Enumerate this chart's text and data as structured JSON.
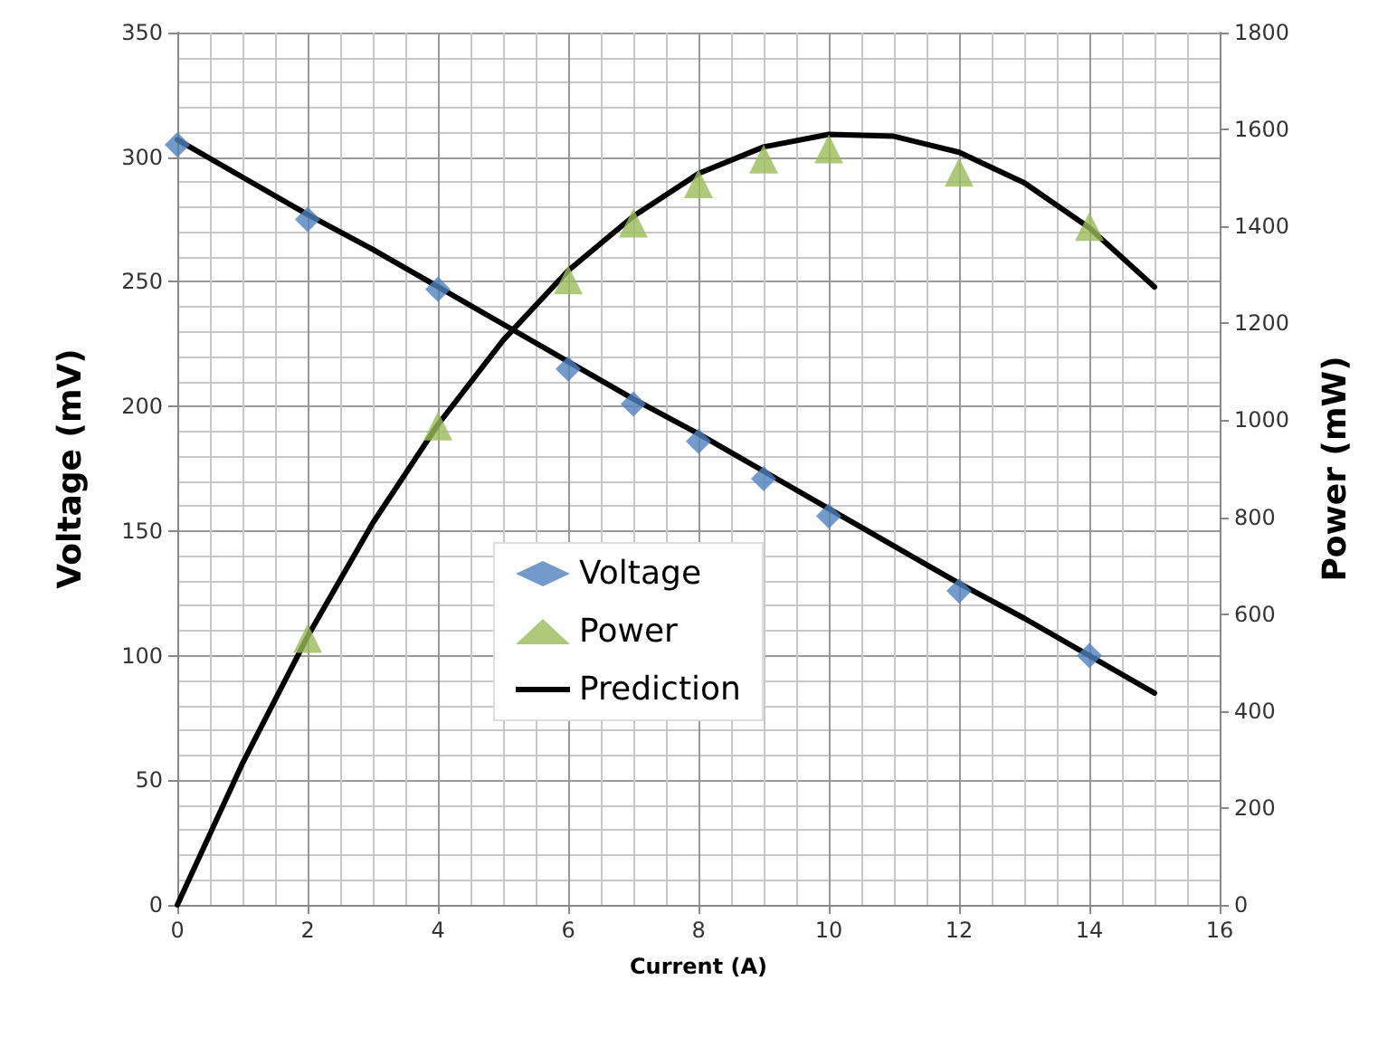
{
  "chart_data": {
    "type": "scatter",
    "xlabel": "Current (A)",
    "ylabel": "Voltage (mV)",
    "y2label": "Power (mW)",
    "xlim": [
      0,
      16
    ],
    "xticks": [
      0,
      2,
      4,
      6,
      8,
      10,
      12,
      14,
      16
    ],
    "ylim": [
      0,
      350
    ],
    "yticks": [
      0,
      50,
      100,
      150,
      200,
      250,
      300,
      350
    ],
    "y2lim": [
      0,
      1800
    ],
    "y2ticks": [
      0,
      200,
      400,
      600,
      800,
      1000,
      1200,
      1400,
      1600,
      1800
    ],
    "grid": true,
    "legend": "bottom",
    "series": [
      {
        "name": "Voltage",
        "axis": "y",
        "marker": "diamond",
        "color": "#4f81bd",
        "x": [
          0,
          2,
          4,
          6,
          7,
          8,
          9,
          10,
          12,
          14
        ],
        "values": [
          305,
          275,
          247,
          215,
          201,
          186,
          171,
          156,
          126,
          100
        ]
      },
      {
        "name": "Power",
        "axis": "y2",
        "marker": "triangle",
        "color": "#9bbb59",
        "x": [
          2,
          4,
          6,
          7,
          8,
          9,
          10,
          12,
          14
        ],
        "values": [
          550,
          988,
          1290,
          1407,
          1488,
          1539,
          1560,
          1512,
          1400
        ]
      },
      {
        "name": "Prediction",
        "type": "line",
        "axis": "y",
        "marker": "none",
        "line_style": "solid",
        "color": "#000000",
        "x": [
          0,
          1,
          2,
          3,
          4,
          5,
          6,
          7,
          8,
          9,
          10,
          11,
          12,
          13,
          14,
          15
        ],
        "values": [
          307,
          292,
          277,
          263,
          248,
          233,
          218,
          203,
          189,
          174,
          159,
          144,
          129,
          115,
          100,
          85
        ]
      },
      {
        "type": "line",
        "axis": "y2",
        "marker": "none",
        "line_style": "solid",
        "color": "#000000",
        "x": [
          0,
          1,
          2,
          3,
          4,
          5,
          6,
          7,
          8,
          9,
          10,
          11,
          12,
          13,
          14,
          15
        ],
        "values": [
          0,
          292,
          554,
          788,
          991,
          1165,
          1309,
          1421,
          1509,
          1564,
          1590,
          1586,
          1553,
          1490,
          1397,
          1275
        ]
      }
    ]
  }
}
